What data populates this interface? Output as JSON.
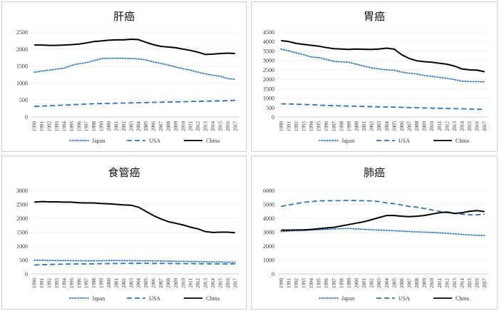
{
  "chart_data": [
    {
      "type": "line",
      "title": "肝癌",
      "ylim": [
        0,
        2500
      ],
      "yticks": [
        0,
        500,
        1000,
        1500,
        2000,
        2500
      ],
      "x": [
        "1990",
        "1991",
        "1992",
        "1993",
        "1994",
        "1995",
        "1996",
        "1997",
        "1998",
        "1999",
        "2000",
        "2001",
        "2002",
        "2003",
        "2004",
        "2005",
        "2006",
        "2007",
        "2008",
        "2009",
        "2010",
        "2011",
        "2012",
        "2013",
        "2014",
        "2015",
        "2016",
        "2017"
      ],
      "series": [
        {
          "name": "Japan",
          "style": "dotted",
          "color": "#2e75b6",
          "values": [
            1320,
            1350,
            1380,
            1410,
            1440,
            1520,
            1570,
            1600,
            1660,
            1720,
            1730,
            1730,
            1730,
            1720,
            1710,
            1680,
            1620,
            1580,
            1530,
            1470,
            1420,
            1380,
            1320,
            1270,
            1230,
            1200,
            1130,
            1110
          ]
        },
        {
          "name": "USA",
          "style": "dashed",
          "color": "#2e75b6",
          "values": [
            310,
            320,
            330,
            340,
            350,
            360,
            370,
            380,
            390,
            395,
            400,
            405,
            410,
            415,
            420,
            425,
            430,
            435,
            440,
            445,
            450,
            455,
            460,
            465,
            470,
            475,
            480,
            490
          ]
        },
        {
          "name": "China",
          "style": "solid",
          "color": "#000000",
          "values": [
            2120,
            2120,
            2110,
            2110,
            2120,
            2130,
            2150,
            2180,
            2220,
            2240,
            2260,
            2270,
            2270,
            2290,
            2280,
            2200,
            2130,
            2080,
            2060,
            2040,
            2000,
            1960,
            1910,
            1840,
            1850,
            1870,
            1880,
            1870
          ]
        }
      ]
    },
    {
      "type": "line",
      "title": "胃癌",
      "ylim": [
        0,
        4500
      ],
      "yticks": [
        0,
        500,
        1000,
        1500,
        2000,
        2500,
        3000,
        3500,
        4000,
        4500
      ],
      "x": [
        "1990",
        "1991",
        "1992",
        "1993",
        "1994",
        "1995",
        "1996",
        "1997",
        "1998",
        "1999",
        "2000",
        "2001",
        "2002",
        "2003",
        "2004",
        "2005",
        "2006",
        "2007",
        "2008",
        "2009",
        "2010",
        "2011",
        "2012",
        "2013",
        "2014",
        "2015",
        "2016",
        "2017"
      ],
      "series": [
        {
          "name": "Japan",
          "style": "dotted",
          "color": "#2e75b6",
          "values": [
            3600,
            3500,
            3400,
            3300,
            3180,
            3150,
            3050,
            2950,
            2920,
            2900,
            2800,
            2700,
            2600,
            2550,
            2500,
            2480,
            2380,
            2320,
            2280,
            2200,
            2150,
            2100,
            2050,
            1980,
            1900,
            1880,
            1870,
            1860
          ]
        },
        {
          "name": "USA",
          "style": "dashed",
          "color": "#2e75b6",
          "values": [
            700,
            690,
            680,
            660,
            650,
            630,
            610,
            600,
            590,
            580,
            570,
            560,
            550,
            540,
            530,
            520,
            510,
            500,
            490,
            480,
            470,
            460,
            450,
            440,
            430,
            420,
            410,
            400
          ]
        },
        {
          "name": "China",
          "style": "solid",
          "color": "#000000",
          "values": [
            4050,
            4000,
            3900,
            3850,
            3800,
            3750,
            3680,
            3620,
            3600,
            3580,
            3600,
            3590,
            3580,
            3600,
            3650,
            3600,
            3300,
            3100,
            2980,
            2930,
            2900,
            2850,
            2800,
            2700,
            2550,
            2500,
            2480,
            2400
          ]
        }
      ]
    },
    {
      "type": "line",
      "title": "食管癌",
      "ylim": [
        0,
        3000
      ],
      "yticks": [
        0,
        500,
        1000,
        1500,
        2000,
        2500,
        3000
      ],
      "x": [
        "1990",
        "1991",
        "1992",
        "1993",
        "1994",
        "1995",
        "1996",
        "1997",
        "1998",
        "1999",
        "2000",
        "2001",
        "2002",
        "2003",
        "2004",
        "2005",
        "2006",
        "2007",
        "2008",
        "2009",
        "2010",
        "2011",
        "2012",
        "2013",
        "2014",
        "2015",
        "2016",
        "2017"
      ],
      "series": [
        {
          "name": "Japan",
          "style": "dotted",
          "color": "#2e75b6",
          "values": [
            490,
            490,
            485,
            480,
            480,
            475,
            475,
            470,
            470,
            475,
            480,
            480,
            478,
            475,
            472,
            470,
            468,
            465,
            460,
            455,
            450,
            445,
            440,
            435,
            430,
            425,
            420,
            420
          ]
        },
        {
          "name": "USA",
          "style": "dashed",
          "color": "#2e75b6",
          "values": [
            320,
            330,
            340,
            345,
            350,
            355,
            360,
            360,
            365,
            370,
            372,
            375,
            378,
            380,
            380,
            380,
            378,
            376,
            374,
            372,
            370,
            368,
            366,
            364,
            362,
            360,
            360,
            362
          ]
        },
        {
          "name": "China",
          "style": "solid",
          "color": "#000000",
          "values": [
            2580,
            2600,
            2590,
            2590,
            2580,
            2580,
            2560,
            2550,
            2550,
            2530,
            2520,
            2500,
            2480,
            2470,
            2400,
            2250,
            2100,
            1980,
            1880,
            1820,
            1760,
            1680,
            1620,
            1520,
            1490,
            1500,
            1500,
            1480
          ]
        }
      ]
    },
    {
      "type": "line",
      "title": "肺癌",
      "ylim": [
        0,
        6000
      ],
      "yticks": [
        0,
        1000,
        2000,
        3000,
        4000,
        5000,
        6000
      ],
      "x": [
        "1990",
        "1991",
        "1992",
        "1993",
        "1994",
        "1995",
        "1996",
        "1997",
        "1998",
        "1999",
        "2000",
        "2001",
        "2002",
        "2003",
        "2004",
        "2005",
        "2006",
        "2007",
        "2008",
        "2009",
        "2010",
        "2011",
        "2012",
        "2013",
        "2014",
        "2015",
        "2016",
        "2017"
      ],
      "series": [
        {
          "name": "Japan",
          "style": "dotted",
          "color": "#2e75b6",
          "values": [
            3050,
            3080,
            3100,
            3120,
            3150,
            3180,
            3200,
            3230,
            3250,
            3270,
            3230,
            3200,
            3180,
            3150,
            3130,
            3100,
            3080,
            3050,
            3020,
            3000,
            2980,
            2950,
            2920,
            2880,
            2840,
            2800,
            2780,
            2760
          ]
        },
        {
          "name": "USA",
          "style": "dashed",
          "color": "#2e75b6",
          "values": [
            4850,
            4950,
            5050,
            5150,
            5200,
            5250,
            5260,
            5260,
            5270,
            5280,
            5270,
            5260,
            5250,
            5200,
            5100,
            5050,
            4950,
            4850,
            4800,
            4700,
            4600,
            4500,
            4400,
            4350,
            4300,
            4250,
            4250,
            4300
          ]
        },
        {
          "name": "China",
          "style": "solid",
          "color": "#000000",
          "values": [
            3150,
            3150,
            3160,
            3170,
            3200,
            3250,
            3300,
            3350,
            3450,
            3550,
            3650,
            3750,
            3900,
            4050,
            4200,
            4200,
            4150,
            4120,
            4150,
            4200,
            4300,
            4400,
            4450,
            4350,
            4400,
            4500,
            4550,
            4480
          ]
        }
      ]
    }
  ]
}
